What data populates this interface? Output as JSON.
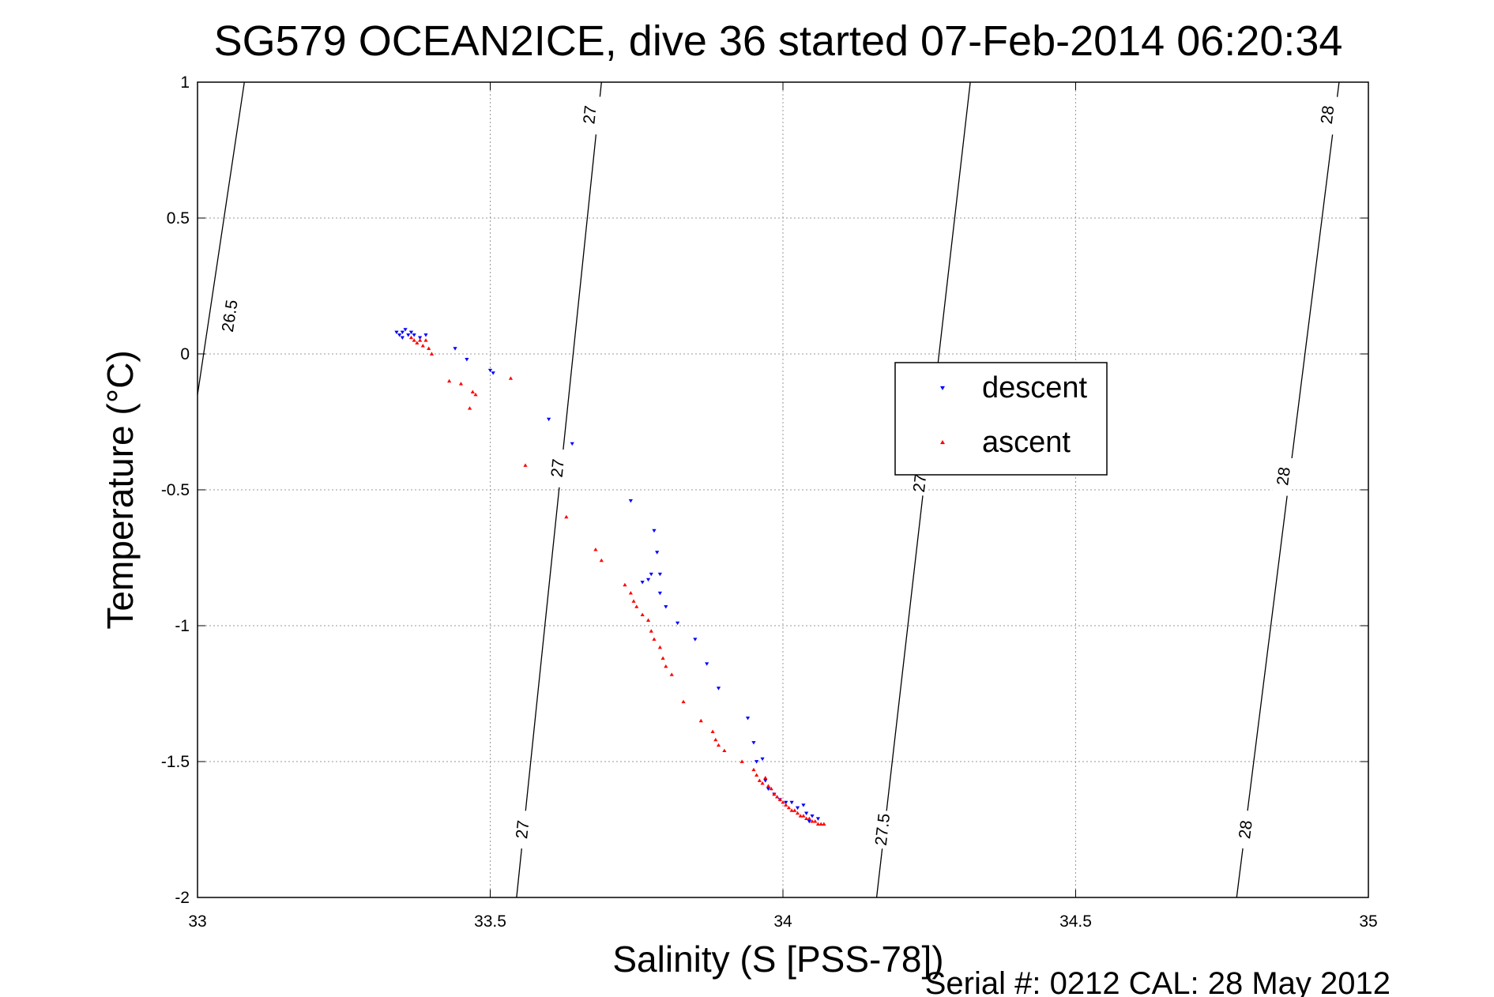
{
  "chart_data": {
    "type": "scatter",
    "title": "SG579 OCEAN2ICE, dive 36 started 07-Feb-2014 06:20:34",
    "xlabel": "Salinity (S [PSS-78])",
    "ylabel": "Temperature (°C)",
    "xlim": [
      33,
      35
    ],
    "ylim": [
      -2,
      1
    ],
    "xticks": [
      33,
      33.5,
      34,
      34.5,
      35
    ],
    "xtick_labels": [
      "33",
      "33.5",
      "34",
      "34.5",
      "35"
    ],
    "yticks": [
      -2,
      -1.5,
      -1,
      -0.5,
      0,
      0.5,
      1
    ],
    "ytick_labels": [
      "-2",
      "-1.5",
      "-1",
      "-0.5",
      "0",
      "0.5",
      "1"
    ],
    "grid": true,
    "legend_position": "center-right",
    "footer": "Serial #: 0212  CAL: 28 May 2012",
    "contours": [
      {
        "label": "26.5",
        "points": [
          [
            33.0,
            -0.15
          ],
          [
            33.08,
            1.0
          ]
        ],
        "label_positions": [
          [
            33.055,
            0.14
          ]
        ]
      },
      {
        "label": "27",
        "points": [
          [
            33.545,
            -2.0
          ],
          [
            33.69,
            1.0
          ]
        ],
        "label_positions": [
          [
            33.555,
            -1.75
          ],
          [
            33.615,
            -0.42
          ],
          [
            33.67,
            0.88
          ]
        ]
      },
      {
        "label": "27.5",
        "points": [
          [
            34.16,
            -2.0
          ],
          [
            34.32,
            1.0
          ]
        ],
        "label_positions": [
          [
            34.17,
            -1.75
          ],
          [
            34.235,
            -0.45
          ]
        ]
      },
      {
        "label": "28",
        "points": [
          [
            34.775,
            -2.0
          ],
          [
            34.95,
            1.0
          ]
        ],
        "label_positions": [
          [
            34.79,
            -1.75
          ],
          [
            34.855,
            -0.45
          ],
          [
            34.93,
            0.88
          ]
        ]
      }
    ],
    "series": [
      {
        "name": "descent",
        "color": "#0000ff",
        "marker": "triangle-down",
        "points": [
          [
            33.34,
            0.08
          ],
          [
            33.345,
            0.07
          ],
          [
            33.35,
            0.08
          ],
          [
            33.355,
            0.09
          ],
          [
            33.36,
            0.07
          ],
          [
            33.35,
            0.06
          ],
          [
            33.365,
            0.08
          ],
          [
            33.37,
            0.07
          ],
          [
            33.38,
            0.06
          ],
          [
            33.39,
            0.07
          ],
          [
            33.44,
            0.02
          ],
          [
            33.46,
            -0.02
          ],
          [
            33.5,
            -0.06
          ],
          [
            33.505,
            -0.07
          ],
          [
            33.6,
            -0.24
          ],
          [
            33.64,
            -0.33
          ],
          [
            33.74,
            -0.54
          ],
          [
            33.76,
            -0.84
          ],
          [
            33.77,
            -0.83
          ],
          [
            33.775,
            -0.81
          ],
          [
            33.78,
            -0.65
          ],
          [
            33.785,
            -0.73
          ],
          [
            33.79,
            -0.81
          ],
          [
            33.79,
            -0.88
          ],
          [
            33.8,
            -0.93
          ],
          [
            33.82,
            -0.99
          ],
          [
            33.85,
            -1.05
          ],
          [
            33.87,
            -1.14
          ],
          [
            33.89,
            -1.23
          ],
          [
            33.94,
            -1.34
          ],
          [
            33.95,
            -1.43
          ],
          [
            33.955,
            -1.5
          ],
          [
            33.965,
            -1.49
          ],
          [
            33.97,
            -1.57
          ],
          [
            33.975,
            -1.6
          ],
          [
            33.985,
            -1.62
          ],
          [
            33.995,
            -1.64
          ],
          [
            34.005,
            -1.65
          ],
          [
            34.015,
            -1.65
          ],
          [
            34.025,
            -1.67
          ],
          [
            34.035,
            -1.66
          ],
          [
            34.04,
            -1.69
          ],
          [
            34.05,
            -1.7
          ],
          [
            34.06,
            -1.71
          ],
          [
            34.045,
            -1.72
          ]
        ]
      },
      {
        "name": "ascent",
        "color": "#ff0000",
        "marker": "triangle-up",
        "points": [
          [
            33.365,
            0.06
          ],
          [
            33.37,
            0.05
          ],
          [
            33.375,
            0.04
          ],
          [
            33.38,
            0.05
          ],
          [
            33.385,
            0.03
          ],
          [
            33.39,
            0.05
          ],
          [
            33.395,
            0.02
          ],
          [
            33.4,
            0.0
          ],
          [
            33.43,
            -0.1
          ],
          [
            33.45,
            -0.11
          ],
          [
            33.465,
            -0.2
          ],
          [
            33.47,
            -0.14
          ],
          [
            33.475,
            -0.15
          ],
          [
            33.535,
            -0.09
          ],
          [
            33.56,
            -0.41
          ],
          [
            33.63,
            -0.6
          ],
          [
            33.68,
            -0.72
          ],
          [
            33.69,
            -0.76
          ],
          [
            33.73,
            -0.85
          ],
          [
            33.74,
            -0.88
          ],
          [
            33.745,
            -0.91
          ],
          [
            33.75,
            -0.93
          ],
          [
            33.76,
            -0.96
          ],
          [
            33.77,
            -0.98
          ],
          [
            33.775,
            -1.02
          ],
          [
            33.78,
            -1.05
          ],
          [
            33.79,
            -1.08
          ],
          [
            33.795,
            -1.12
          ],
          [
            33.8,
            -1.15
          ],
          [
            33.81,
            -1.18
          ],
          [
            33.83,
            -1.28
          ],
          [
            33.86,
            -1.35
          ],
          [
            33.88,
            -1.39
          ],
          [
            33.885,
            -1.42
          ],
          [
            33.89,
            -1.44
          ],
          [
            33.9,
            -1.46
          ],
          [
            33.93,
            -1.5
          ],
          [
            33.95,
            -1.53
          ],
          [
            33.955,
            -1.55
          ],
          [
            33.96,
            -1.57
          ],
          [
            33.965,
            -1.58
          ],
          [
            33.97,
            -1.56
          ],
          [
            33.975,
            -1.59
          ],
          [
            33.98,
            -1.6
          ],
          [
            33.985,
            -1.62
          ],
          [
            33.99,
            -1.63
          ],
          [
            33.995,
            -1.64
          ],
          [
            34.0,
            -1.65
          ],
          [
            34.005,
            -1.66
          ],
          [
            34.01,
            -1.67
          ],
          [
            34.015,
            -1.68
          ],
          [
            34.02,
            -1.68
          ],
          [
            34.025,
            -1.69
          ],
          [
            34.03,
            -1.7
          ],
          [
            34.035,
            -1.7
          ],
          [
            34.04,
            -1.71
          ],
          [
            34.045,
            -1.71
          ],
          [
            34.05,
            -1.72
          ],
          [
            34.055,
            -1.72
          ],
          [
            34.06,
            -1.73
          ],
          [
            34.065,
            -1.73
          ],
          [
            34.07,
            -1.73
          ]
        ]
      }
    ]
  }
}
